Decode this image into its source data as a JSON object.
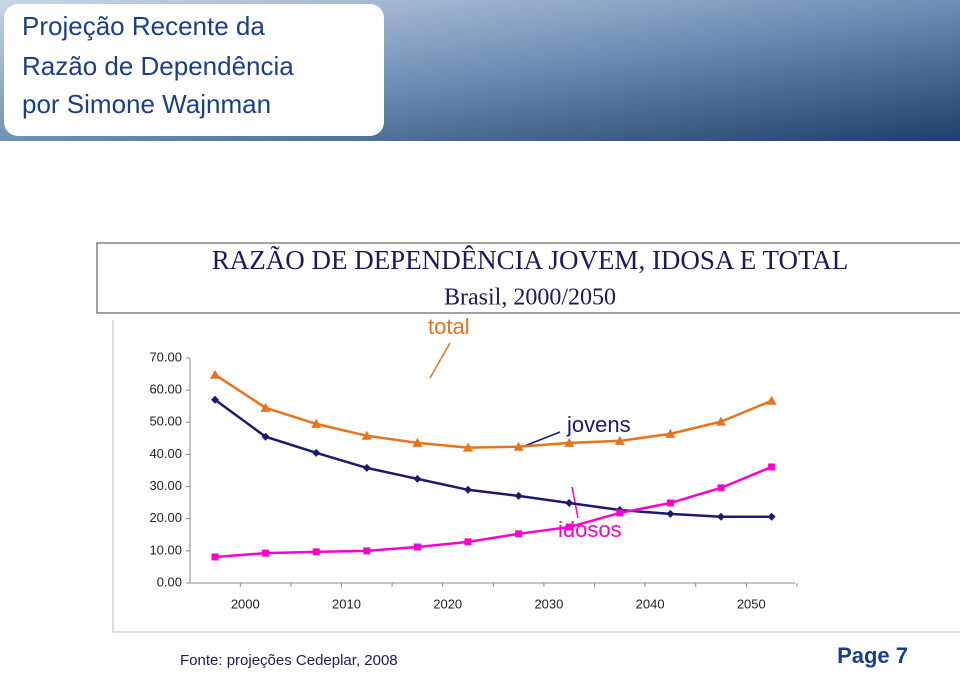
{
  "header": {
    "title": [
      "Projeção Recente da",
      "Razão de Dependência",
      "por Simone Wajnman"
    ]
  },
  "chart_data": {
    "type": "line",
    "title": "RAZÃO DE DEPENDÊNCIA JOVEM, IDOSA E TOTAL",
    "subtitle": "Brasil, 2000/2050",
    "categories": [
      "2000",
      null,
      "2010",
      null,
      "2020",
      null,
      "2030",
      null,
      "2040",
      null,
      "2050",
      null
    ],
    "series": [
      {
        "name": "total",
        "color": "#e8731a",
        "marker": "triangle",
        "values": [
          64.8,
          54.5,
          49.5,
          45.8,
          43.6,
          42.1,
          42.4,
          43.6,
          44.2,
          46.4,
          50.2,
          56.7
        ]
      },
      {
        "name": "jovens",
        "color": "#1a1a6e",
        "marker": "diamond",
        "values": [
          57.0,
          45.5,
          40.5,
          35.8,
          32.4,
          29.0,
          27.1,
          24.9,
          22.7,
          21.5,
          20.6,
          20.6
        ]
      },
      {
        "name": "idosos",
        "color": "#ff00cc",
        "marker": "square",
        "values": [
          8.1,
          9.3,
          9.7,
          10.0,
          11.2,
          12.8,
          15.3,
          17.4,
          21.8,
          24.9,
          29.6,
          36.1
        ]
      }
    ],
    "ylim": [
      0,
      70
    ],
    "yticks": [
      {
        "value": 0,
        "label": "0.00"
      },
      {
        "value": 10,
        "label": "10.00"
      },
      {
        "value": 20,
        "label": "20.00"
      },
      {
        "value": 30,
        "label": "30.00"
      },
      {
        "value": 40,
        "label": "40.00"
      },
      {
        "value": 50,
        "label": "50.00"
      },
      {
        "value": 60,
        "label": "60.00"
      },
      {
        "value": 70,
        "label": "70.00"
      }
    ]
  },
  "footer": {
    "source": "Fonte: projeções Cedeplar, 2008",
    "page": "Page 7"
  }
}
